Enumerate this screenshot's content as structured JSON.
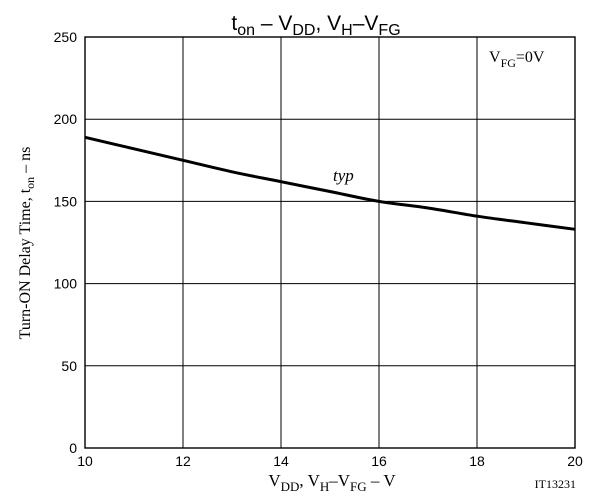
{
  "chart_data": {
    "type": "line",
    "title": {
      "main": "t",
      "main_sub": "on",
      "sep1": " – ",
      "v1": "V",
      "v1_sub": "DD",
      "sep2": ", ",
      "v2": "V",
      "v2_sub": "H",
      "dash": "–",
      "v3": "V",
      "v3_sub": "FG"
    },
    "xlabel": {
      "v1": "V",
      "v1_sub": "DD",
      "sep": ", ",
      "v2": "V",
      "v2_sub": "H",
      "dash": "–",
      "v3": "V",
      "v3_sub": "FG",
      "unit": " – V"
    },
    "ylabel": {
      "text": "Turn-ON Delay Time, t",
      "sub": "on",
      "unit": " – ns"
    },
    "condition": {
      "v": "V",
      "sub": "FG",
      "value": "=0V"
    },
    "xlim": [
      10,
      20
    ],
    "ylim": [
      0,
      250
    ],
    "xticks": [
      10,
      12,
      14,
      16,
      18,
      20
    ],
    "yticks": [
      0,
      50,
      100,
      150,
      200,
      250
    ],
    "grid": true,
    "series": [
      {
        "name": "typ",
        "x": [
          10,
          11,
          12,
          13,
          14,
          15,
          16,
          17,
          18,
          19,
          20
        ],
        "y": [
          189,
          182,
          175,
          168,
          162,
          156,
          150,
          146,
          141,
          137,
          133
        ]
      }
    ],
    "code": "IT13231"
  }
}
